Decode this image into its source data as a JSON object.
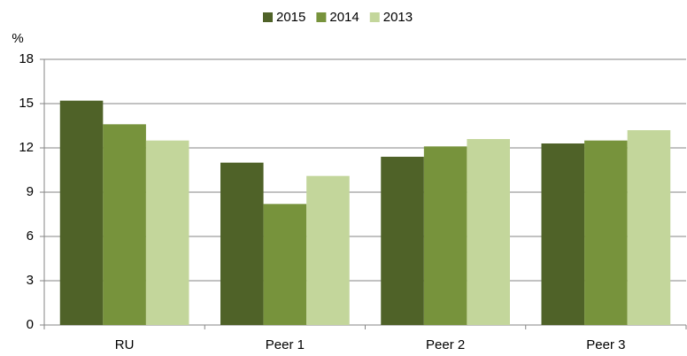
{
  "chart_data": {
    "type": "bar",
    "y_label": "%",
    "categories": [
      "RU",
      "Peer 1",
      "Peer 2",
      "Peer 3"
    ],
    "series": [
      {
        "name": "2015",
        "color": "#4f6228",
        "values": [
          15.2,
          11.0,
          11.4,
          12.3
        ]
      },
      {
        "name": "2014",
        "color": "#77933c",
        "values": [
          13.6,
          8.2,
          12.1,
          12.5
        ]
      },
      {
        "name": "2013",
        "color": "#c3d69b",
        "values": [
          12.5,
          10.1,
          12.6,
          13.2
        ]
      }
    ],
    "ylim": [
      0,
      18
    ],
    "yticks": [
      0,
      3,
      6,
      9,
      12,
      15,
      18
    ],
    "grid": true,
    "legend": "top"
  }
}
